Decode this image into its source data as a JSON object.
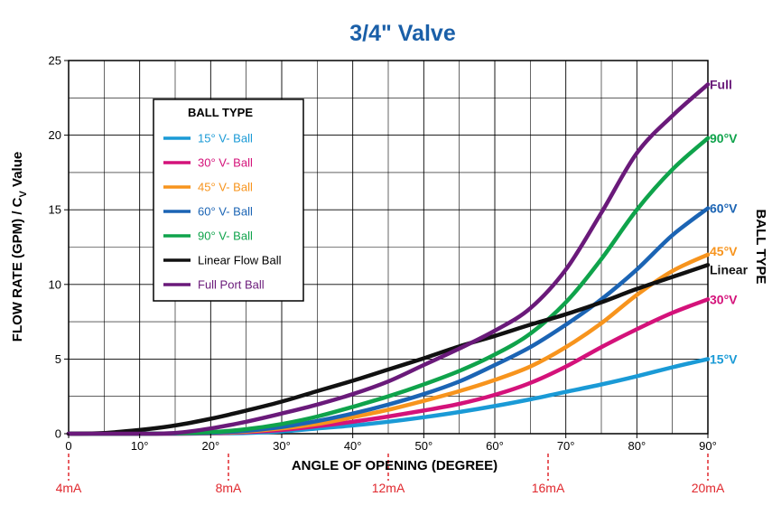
{
  "chart_data": {
    "type": "line",
    "title": "3/4\" Valve",
    "xlabel": "ANGLE OF OPENING (DEGREE)",
    "ylabel_main": "FLOW RATE (GPM) / C",
    "ylabel_sub": "V",
    "ylabel_tail": " Value",
    "right_axis_title": "BALL TYPE",
    "xlim": [
      0,
      90
    ],
    "ylim": [
      0,
      25
    ],
    "x_ticks": [
      0,
      10,
      20,
      30,
      40,
      50,
      60,
      70,
      80,
      90
    ],
    "x_tick_labels": [
      "0",
      "10°",
      "20°",
      "30°",
      "40°",
      "50°",
      "60°",
      "70°",
      "80°",
      "90°"
    ],
    "y_ticks": [
      0,
      5,
      10,
      15,
      20,
      25
    ],
    "y_tick_labels": [
      "0",
      "5",
      "10",
      "15",
      "20",
      "25"
    ],
    "grid": true,
    "legend_title": "BALL TYPE",
    "legend_position": "top-left",
    "ma_markers": [
      {
        "x": 0,
        "label": "4mA"
      },
      {
        "x": 22.5,
        "label": "8mA"
      },
      {
        "x": 45,
        "label": "12mA"
      },
      {
        "x": 67.5,
        "label": "16mA"
      },
      {
        "x": 90,
        "label": "20mA"
      }
    ],
    "x": [
      0,
      5,
      10,
      15,
      20,
      25,
      30,
      35,
      40,
      45,
      50,
      55,
      60,
      65,
      70,
      75,
      80,
      85,
      90
    ],
    "series": [
      {
        "name": "15° V- Ball",
        "end_label": "15°V",
        "color": "#1a9ad6",
        "values": [
          0,
          0,
          0,
          0,
          0.02,
          0.05,
          0.15,
          0.35,
          0.55,
          0.8,
          1.1,
          1.45,
          1.85,
          2.3,
          2.8,
          3.3,
          3.85,
          4.45,
          5.0
        ]
      },
      {
        "name": "30° V- Ball",
        "end_label": "30°V",
        "color": "#d4127a",
        "values": [
          0,
          0,
          0,
          0,
          0.03,
          0.1,
          0.25,
          0.5,
          0.8,
          1.15,
          1.55,
          2.0,
          2.6,
          3.4,
          4.5,
          5.8,
          7.0,
          8.1,
          9.0
        ]
      },
      {
        "name": "45° V- Ball",
        "end_label": "45°V",
        "color": "#f7941d",
        "values": [
          0,
          0,
          0,
          0.02,
          0.05,
          0.15,
          0.35,
          0.65,
          1.1,
          1.6,
          2.2,
          2.85,
          3.6,
          4.5,
          5.8,
          7.4,
          9.3,
          10.9,
          12.0
        ]
      },
      {
        "name": "60° V- Ball",
        "end_label": "60°V",
        "color": "#1b64b4",
        "values": [
          0,
          0,
          0,
          0.02,
          0.06,
          0.2,
          0.45,
          0.85,
          1.35,
          1.95,
          2.65,
          3.5,
          4.6,
          5.8,
          7.3,
          9.0,
          11.0,
          13.3,
          15.1
        ]
      },
      {
        "name": "90° V- Ball",
        "end_label": "90°V",
        "color": "#0fa34b",
        "values": [
          0,
          0,
          0,
          0.03,
          0.1,
          0.3,
          0.65,
          1.15,
          1.8,
          2.5,
          3.3,
          4.2,
          5.3,
          6.7,
          8.8,
          11.7,
          15.0,
          17.7,
          19.8
        ]
      },
      {
        "name": "Linear Flow Ball",
        "end_label": "Linear",
        "color": "#111111",
        "values": [
          0,
          0.05,
          0.25,
          0.55,
          1.0,
          1.55,
          2.15,
          2.85,
          3.55,
          4.3,
          5.05,
          5.85,
          6.55,
          7.3,
          8.0,
          8.8,
          9.7,
          10.5,
          11.3
        ]
      },
      {
        "name": "Full Port Ball",
        "end_label": "Full",
        "color": "#6a1a7a",
        "values": [
          0,
          0,
          0,
          0.05,
          0.35,
          0.8,
          1.35,
          1.95,
          2.65,
          3.5,
          4.6,
          5.7,
          6.9,
          8.4,
          11.0,
          14.8,
          18.8,
          21.3,
          23.4
        ]
      }
    ]
  }
}
